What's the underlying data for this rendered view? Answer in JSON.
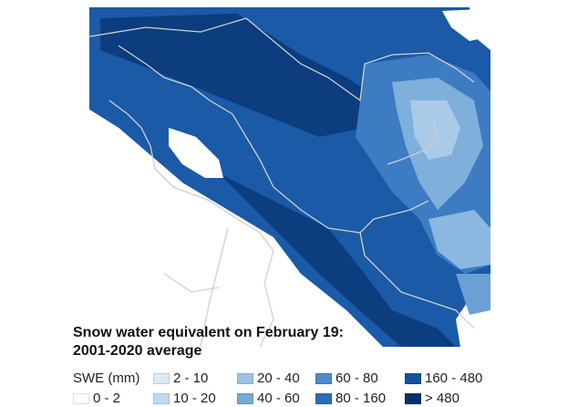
{
  "title_line1": "Snow water equivalent on February 19:",
  "title_line2": "2001-2020 average",
  "legend": {
    "heading": "SWE (mm)",
    "classes": [
      {
        "label": "0 - 2",
        "color": "#ffffff"
      },
      {
        "label": "2 - 10",
        "color": "#dce9f6"
      },
      {
        "label": "10 - 20",
        "color": "#c3d9ee"
      },
      {
        "label": "20 - 40",
        "color": "#9dc4e4"
      },
      {
        "label": "40 - 60",
        "color": "#74a9d8"
      },
      {
        "label": "60 - 80",
        "color": "#4b8bca"
      },
      {
        "label": "80 - 160",
        "color": "#2a6db8"
      },
      {
        "label": "160 - 480",
        "color": "#1452a0"
      },
      {
        "label": "> 480",
        "color": "#08306b"
      }
    ]
  }
}
